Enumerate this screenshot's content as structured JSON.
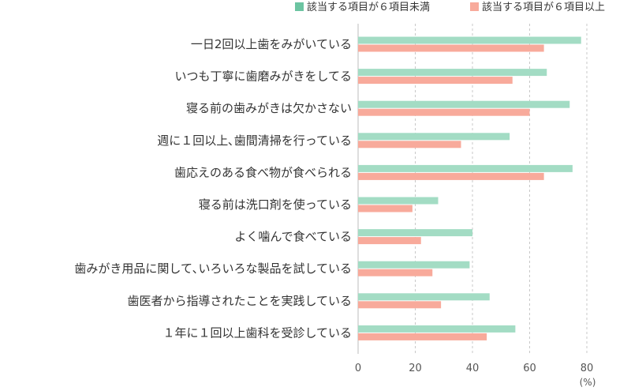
{
  "chart_data": {
    "type": "bar",
    "orientation": "horizontal",
    "categories": [
      "一日2回以上歯をみがいている",
      "いつも丁寧に歯磨みがきをしてる",
      "寝る前の歯みがきは欠かさない",
      "週に１回以上､歯間清掃を行っている",
      "歯応えのある食べ物が食べられる",
      "寝る前は洗口剤を使っている",
      "よく噛んで食べている",
      "歯みがき用品に関して､いろいろな製品を試している",
      "歯医者から指導されたことを実践している",
      "１年に１回以上歯科を受診している"
    ],
    "series": [
      {
        "name": "該当する項目が６項目未満",
        "color": "#a3dcc4",
        "legend_color": "#6cc4a1",
        "values": [
          78,
          66,
          74,
          53,
          75,
          28,
          40,
          39,
          46,
          55
        ]
      },
      {
        "name": "該当する項目が６項目以上",
        "color": "#f8aa9b",
        "legend_color": "#f8aa9b",
        "values": [
          65,
          54,
          60,
          36,
          65,
          19,
          22,
          26,
          29,
          45
        ]
      }
    ],
    "xlim": [
      0,
      80
    ],
    "xticks": [
      0,
      20,
      40,
      60,
      80
    ],
    "unit_label": "(%)",
    "grid": "vertical-dashed",
    "legend_position": "top-right"
  }
}
